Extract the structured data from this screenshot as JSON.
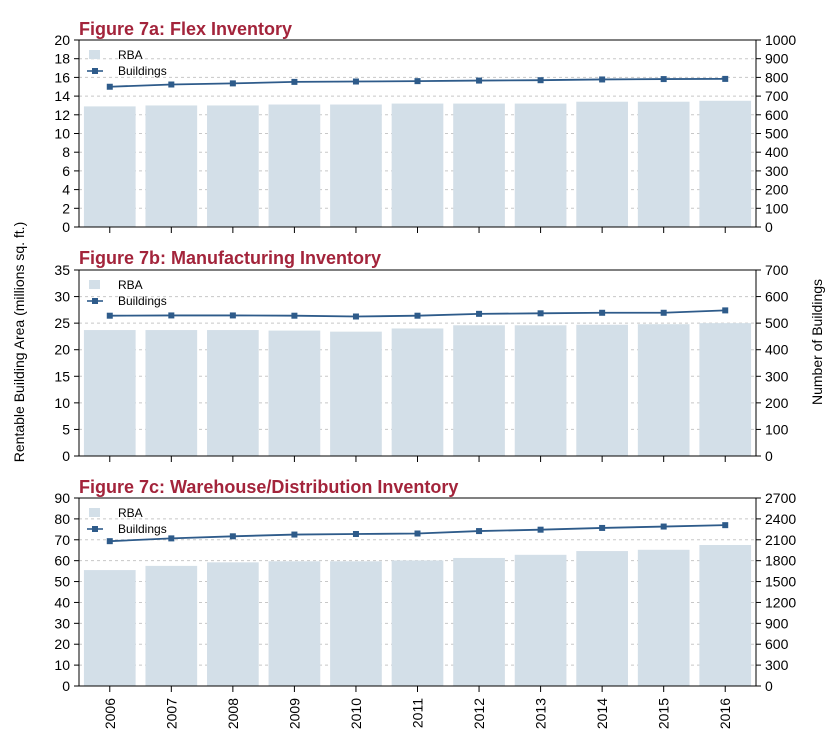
{
  "colors": {
    "title": "#a3243b",
    "bar": "#d3dfe8",
    "line": "#2e5b8a",
    "grid": "#c8c8c8",
    "axis": "#000000"
  },
  "left_axis_label": "Rentable Building Area (millions sq. ft.)",
  "right_axis_label": "Number of Buildings",
  "chart_data": [
    {
      "type": "bar",
      "title": "Figure 7a:  Flex Inventory",
      "categories": [
        "2006",
        "2007",
        "2008",
        "2009",
        "2010",
        "2011",
        "2012",
        "2013",
        "2014",
        "2015",
        "2016"
      ],
      "series": [
        {
          "name": "RBA",
          "type": "bar",
          "axis": "left",
          "values": [
            12.9,
            13.0,
            13.0,
            13.1,
            13.1,
            13.2,
            13.2,
            13.2,
            13.4,
            13.4,
            13.5
          ]
        },
        {
          "name": "Buildings",
          "type": "line",
          "axis": "right",
          "values": [
            750,
            762,
            768,
            776,
            778,
            780,
            783,
            785,
            789,
            791,
            792
          ]
        }
      ],
      "ylim": [
        0,
        20
      ],
      "yticks": [
        0,
        2,
        4,
        6,
        8,
        10,
        12,
        14,
        16,
        18,
        20
      ],
      "y2lim": [
        0,
        1000
      ],
      "y2ticks": [
        0,
        100,
        200,
        300,
        400,
        500,
        600,
        700,
        800,
        900,
        1000
      ],
      "grid": true,
      "legend": "top-left"
    },
    {
      "type": "bar",
      "title": "Figure 7b:  Manufacturing Inventory",
      "categories": [
        "2006",
        "2007",
        "2008",
        "2009",
        "2010",
        "2011",
        "2012",
        "2013",
        "2014",
        "2015",
        "2016"
      ],
      "series": [
        {
          "name": "RBA",
          "type": "bar",
          "axis": "left",
          "values": [
            23.7,
            23.7,
            23.7,
            23.6,
            23.4,
            24.0,
            24.6,
            24.6,
            24.7,
            24.8,
            25.0
          ]
        },
        {
          "name": "Buildings",
          "type": "line",
          "axis": "right",
          "values": [
            528,
            529,
            529,
            528,
            525,
            528,
            535,
            537,
            539,
            539,
            548
          ]
        }
      ],
      "ylim": [
        0,
        35
      ],
      "yticks": [
        0,
        5,
        10,
        15,
        20,
        25,
        30,
        35
      ],
      "y2lim": [
        0,
        700
      ],
      "y2ticks": [
        0,
        100,
        200,
        300,
        400,
        500,
        600,
        700
      ],
      "grid": true,
      "legend": "top-left"
    },
    {
      "type": "bar",
      "title": "Figure 7c:  Warehouse/Distribution Inventory",
      "categories": [
        "2006",
        "2007",
        "2008",
        "2009",
        "2010",
        "2011",
        "2012",
        "2013",
        "2014",
        "2015",
        "2016"
      ],
      "series": [
        {
          "name": "RBA",
          "type": "bar",
          "axis": "left",
          "values": [
            55.5,
            57.5,
            59.2,
            59.7,
            59.7,
            60.1,
            61.3,
            62.8,
            64.6,
            65.2,
            67.5
          ]
        },
        {
          "name": "Buildings",
          "type": "line",
          "axis": "right",
          "values": [
            2080,
            2120,
            2150,
            2175,
            2183,
            2190,
            2225,
            2245,
            2270,
            2290,
            2310
          ]
        }
      ],
      "ylim": [
        0,
        90
      ],
      "yticks": [
        0,
        10,
        20,
        30,
        40,
        50,
        60,
        70,
        80,
        90
      ],
      "y2lim": [
        0,
        2700
      ],
      "y2ticks": [
        0,
        300,
        600,
        900,
        1200,
        1500,
        1800,
        2100,
        2400,
        2700
      ],
      "grid": true,
      "legend": "top-left"
    }
  ]
}
